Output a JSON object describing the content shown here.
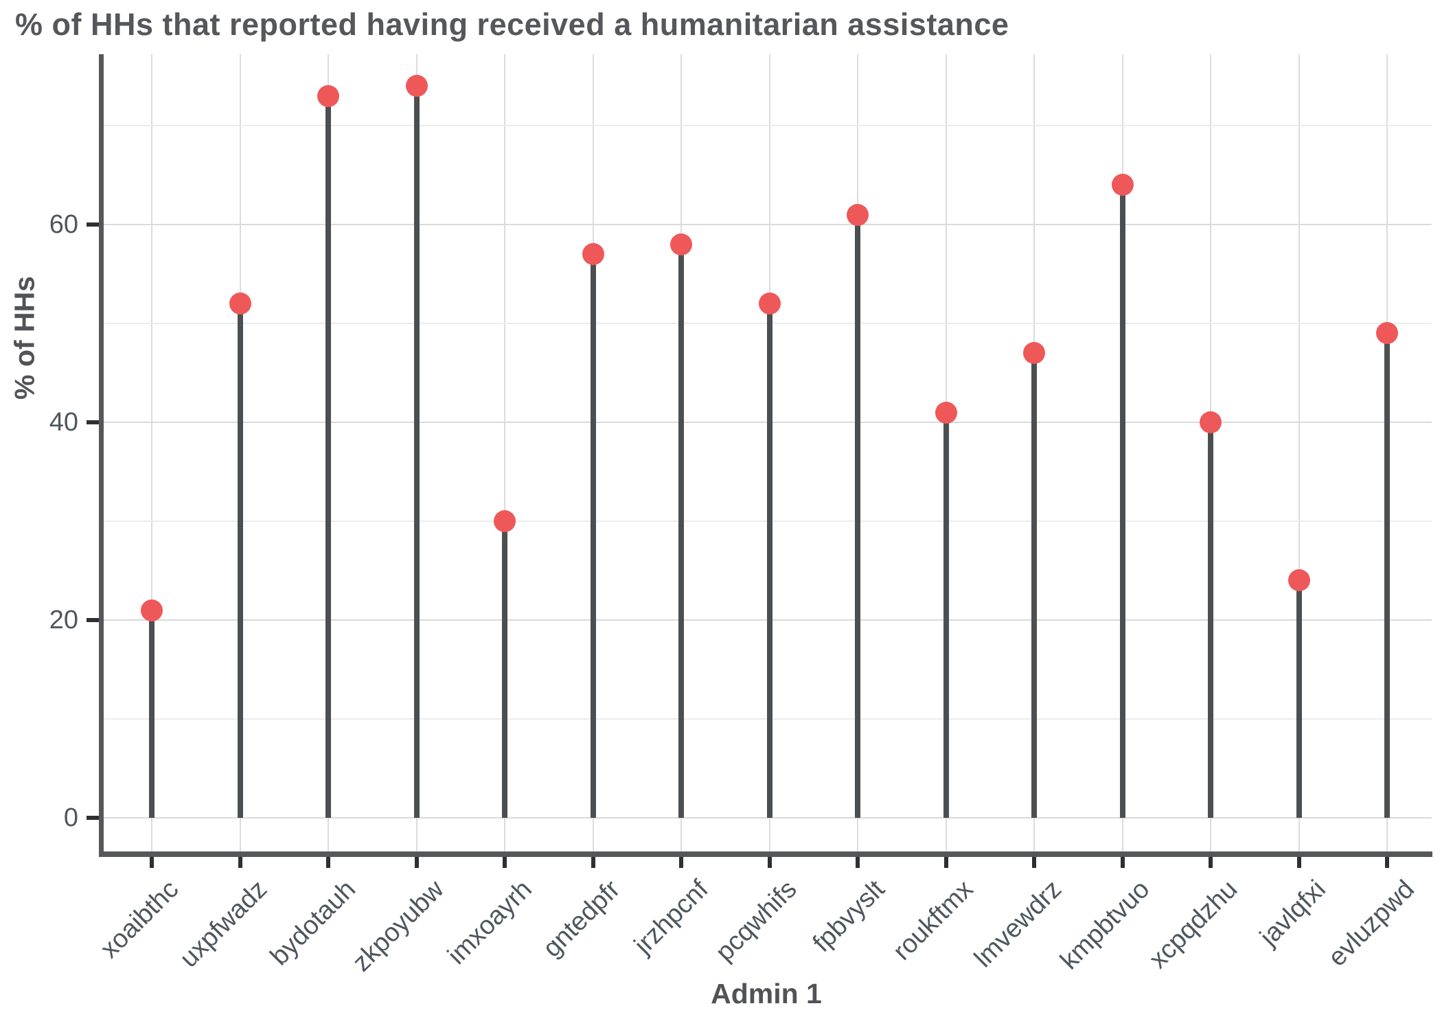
{
  "chart_data": {
    "type": "lollipop",
    "title": "% of HHs that reported having received a humanitarian assistance",
    "xlabel": "Admin 1",
    "ylabel": "% of HHs",
    "categories": [
      "xoaibthc",
      "uxpfwadz",
      "bydotauh",
      "zkpoyubw",
      "imxoayrh",
      "gntedpfr",
      "jrzhpcnf",
      "pcqwhifs",
      "fpbvyslt",
      "roukftmx",
      "lmvewdrz",
      "kmpbtvuo",
      "xcpqdzhu",
      "javlqfxi",
      "evluzpwd"
    ],
    "values": [
      21,
      52,
      73,
      74,
      30,
      57,
      58,
      52,
      61,
      41,
      47,
      64,
      40,
      24,
      49
    ],
    "ylim": [
      0,
      77
    ],
    "y_major_ticks": [
      0,
      20,
      40,
      60
    ],
    "y_minor_gridlines": [
      10,
      30,
      50,
      70
    ],
    "grid": "on",
    "legend": "none",
    "colors": {
      "point": "#ee5859",
      "stem": "#4c4f51",
      "axis_line": "#55575a",
      "tick_mark": "#2e2f31",
      "tick_label": "#4d565e",
      "title": "#56575b",
      "grid_major": "#dadada",
      "grid_minor": "#ececec",
      "background": "#ffffff"
    }
  }
}
